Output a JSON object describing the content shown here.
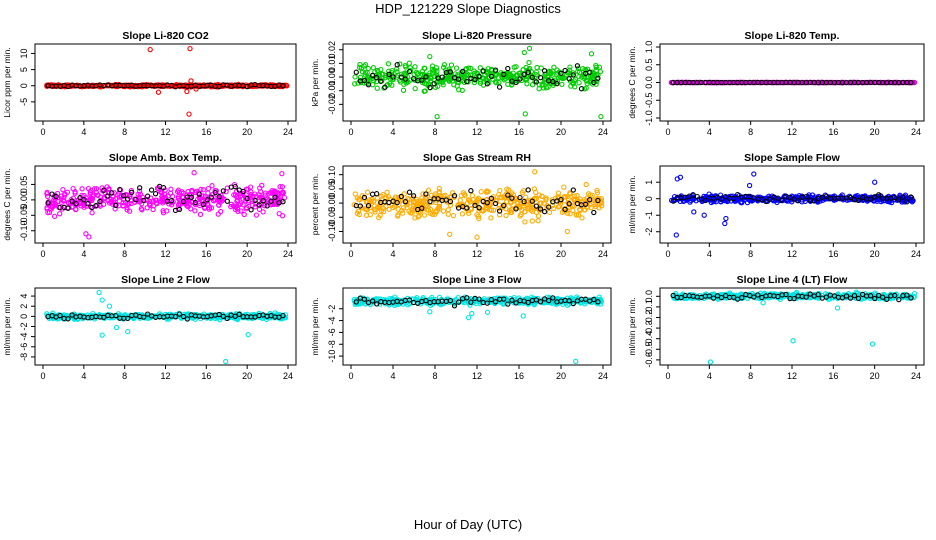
{
  "figure": {
    "title": "HDP_121229  Slope Diagnostics",
    "xlabel": "Hour of Day (UTC)"
  },
  "chart_data": [
    {
      "type": "scatter",
      "title": "Slope Li-820 CO2",
      "ylabel": "Licor ppm per min.",
      "xlim": [
        0,
        24
      ],
      "xticks": [
        "0",
        "4",
        "8",
        "12",
        "16",
        "20",
        "24"
      ],
      "ylim": [
        -10,
        12
      ],
      "yticks": [
        -5,
        0,
        5,
        10
      ],
      "ytick_labels": [
        "-5",
        "0",
        "5",
        "10"
      ],
      "color": "#ff0000",
      "center": 0,
      "spread": 0.3,
      "outliers": [
        [
          10.5,
          11.2
        ],
        [
          14.4,
          11.5
        ],
        [
          14.3,
          -8.8
        ],
        [
          14.1,
          -1.8
        ],
        [
          11.3,
          -2.0
        ],
        [
          14.5,
          1.5
        ],
        [
          15.0,
          -1.0
        ]
      ]
    },
    {
      "type": "scatter",
      "title": "Slope Li-820 Pressure",
      "ylabel": "kPa per min.",
      "xlim": [
        0,
        24
      ],
      "xticks": [
        "0",
        "4",
        "8",
        "12",
        "16",
        "20",
        "24"
      ],
      "ylim": [
        -0.03,
        0.022
      ],
      "yticks": [
        -0.02,
        -0.01,
        0,
        0.01,
        0.02
      ],
      "ytick_labels": [
        "-0.02",
        "-0.01",
        "0.00",
        "0.01",
        "0.02"
      ],
      "color": "#00cc00",
      "center": 0,
      "spread": 0.008,
      "outliers": [
        [
          8.2,
          -0.029
        ],
        [
          16.6,
          -0.027
        ],
        [
          23.8,
          -0.029
        ],
        [
          17.0,
          0.021
        ],
        [
          7.5,
          0.015
        ],
        [
          22.9,
          0.017
        ],
        [
          16.5,
          0.018
        ]
      ]
    },
    {
      "type": "scatter",
      "title": "Slope Li-820 Temp.",
      "ylabel": "degrees C per min.",
      "xlim": [
        0,
        24
      ],
      "xticks": [
        "0",
        "4",
        "8",
        "12",
        "16",
        "20",
        "24"
      ],
      "ylim": [
        -1.0,
        1.0
      ],
      "yticks": [
        -1.0,
        -0.5,
        0,
        0.5,
        1.0
      ],
      "ytick_labels": [
        "-1.0",
        "-0.5",
        "0.0",
        "0.5",
        "1.0"
      ],
      "color": "#cc00cc",
      "center": 0,
      "spread": 0.003,
      "outliers": []
    },
    {
      "type": "scatter",
      "title": "Slope Amb. Box Temp.",
      "ylabel": "degrees C per min.",
      "xlim": [
        0,
        24
      ],
      "xticks": [
        "0",
        "4",
        "8",
        "12",
        "16",
        "20",
        "24"
      ],
      "ylim": [
        -0.13,
        0.1
      ],
      "yticks": [
        -0.1,
        -0.05,
        0,
        0.05
      ],
      "ytick_labels": [
        "-0.10",
        "-0.05",
        "0.00",
        "0.05"
      ],
      "color": "#ff00ff",
      "center": 0,
      "spread": 0.04,
      "outliers": [
        [
          4.5,
          -0.12
        ],
        [
          14.8,
          0.088
        ],
        [
          4.2,
          -0.11
        ],
        [
          23.4,
          0.085
        ]
      ]
    },
    {
      "type": "scatter",
      "title": "Slope Gas Stream RH",
      "ylabel": "percent per min.",
      "xlim": [
        0,
        24
      ],
      "xticks": [
        "0",
        "4",
        "8",
        "12",
        "16",
        "20",
        "24"
      ],
      "ylim": [
        -0.13,
        0.12
      ],
      "yticks": [
        -0.1,
        -0.05,
        0,
        0.05,
        0.1
      ],
      "ytick_labels": [
        "-0.10",
        "-0.05",
        "0.00",
        "0.05",
        "0.10"
      ],
      "color": "#ffaa00",
      "center": 0,
      "spread": 0.045,
      "outliers": [
        [
          12.0,
          -0.12
        ],
        [
          17.5,
          0.11
        ],
        [
          9.4,
          -0.11
        ],
        [
          20.6,
          -0.1
        ]
      ]
    },
    {
      "type": "scatter",
      "title": "Slope Sample Flow",
      "ylabel": "ml/min per min.",
      "xlim": [
        0,
        24
      ],
      "xticks": [
        "0",
        "4",
        "8",
        "12",
        "16",
        "20",
        "24"
      ],
      "ylim": [
        -2.5,
        1.8
      ],
      "yticks": [
        -2,
        -1,
        0,
        1
      ],
      "ytick_labels": [
        "-2",
        "-1",
        "0",
        "1"
      ],
      "color": "#0000ff",
      "center": 0,
      "spread": 0.2,
      "outliers": [
        [
          0.8,
          -2.2
        ],
        [
          0.9,
          1.2
        ],
        [
          1.2,
          1.3
        ],
        [
          8.3,
          1.5
        ],
        [
          5.5,
          -1.5
        ],
        [
          3.5,
          -1.0
        ],
        [
          5.6,
          -1.2
        ],
        [
          20.0,
          1.0
        ],
        [
          2.5,
          -0.8
        ],
        [
          7.9,
          0.8
        ]
      ]
    },
    {
      "type": "scatter",
      "title": "Slope Line 2 Flow",
      "ylabel": "ml/min per min.",
      "xlim": [
        0,
        24
      ],
      "xticks": [
        "0",
        "4",
        "8",
        "12",
        "16",
        "20",
        "24"
      ],
      "ylim": [
        -9,
        5
      ],
      "yticks": [
        -8,
        -6,
        -4,
        -2,
        0,
        2,
        4
      ],
      "ytick_labels": [
        "-8",
        "-6",
        "-4",
        "-2",
        "0",
        "2",
        "4"
      ],
      "color": "#00e5e5",
      "center": 0,
      "spread": 0.5,
      "outliers": [
        [
          17.9,
          -8.9
        ],
        [
          5.5,
          4.7
        ],
        [
          5.8,
          3.2
        ],
        [
          5.8,
          -3.7
        ],
        [
          20.1,
          -3.6
        ],
        [
          8.3,
          -3.0
        ],
        [
          7.2,
          -2.2
        ],
        [
          6.5,
          2.0
        ]
      ]
    },
    {
      "type": "scatter",
      "title": "Slope Line 3 Flow",
      "ylabel": "ml/min per min.",
      "xlim": [
        0,
        24
      ],
      "xticks": [
        "0",
        "4",
        "8",
        "12",
        "16",
        "20",
        "24"
      ],
      "ylim": [
        -11,
        1
      ],
      "yticks": [
        -10,
        -8,
        -6,
        -4,
        -2
      ],
      "ytick_labels": [
        "-10",
        "-8",
        "-6",
        "-4",
        "-2"
      ],
      "color": "#00e5e5",
      "center": -0.7,
      "spread": 0.6,
      "outliers": [
        [
          21.4,
          -10.9
        ],
        [
          11.2,
          -3.5
        ],
        [
          11.5,
          -2.8
        ],
        [
          7.5,
          -2.5
        ],
        [
          13.0,
          -2.6
        ],
        [
          16.4,
          -3.2
        ]
      ]
    },
    {
      "type": "scatter",
      "title": "Slope Line 4 (LT) Flow",
      "ylabel": "ml/min per min.",
      "xlim": [
        0,
        24
      ],
      "xticks": [
        "0",
        "4",
        "8",
        "12",
        "16",
        "20",
        "24"
      ],
      "ylim": [
        -0.62,
        0.05
      ],
      "yticks": [
        -0.6,
        -0.5,
        -0.4,
        -0.3,
        -0.2,
        -0.1,
        0
      ],
      "ytick_labels": [
        "-0.6",
        "-0.5",
        "-0.4",
        "-0.3",
        "-0.2",
        "-0.1",
        "0.0"
      ],
      "color": "#00e5e5",
      "center": 0,
      "spread": 0.025,
      "outliers": [
        [
          4.1,
          -0.62
        ],
        [
          12.1,
          -0.42
        ],
        [
          19.8,
          -0.45
        ],
        [
          16.4,
          -0.11
        ],
        [
          9.2,
          -0.06
        ]
      ]
    }
  ]
}
